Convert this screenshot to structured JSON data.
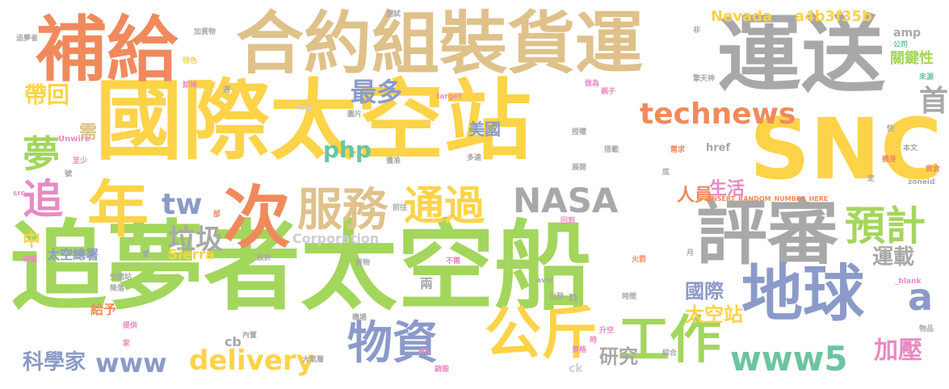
{
  "colors": {
    "yellow": "#fcd349",
    "green": "#a3d65c",
    "tan": "#dfc18a",
    "gray": "#a8a8a8",
    "blue": "#8b9ac9",
    "orange": "#f08a5d",
    "teal": "#6cc4a1",
    "pink": "#e98ac3",
    "lightgray": "#cfcfcf"
  },
  "words": [
    {
      "text": "國際太空站",
      "color": "yellow"
    },
    {
      "text": "追夢者太空船",
      "color": "green"
    },
    {
      "text": "SNC",
      "color": "yellow"
    },
    {
      "text": "合約組裝貨運",
      "color": "tan"
    },
    {
      "text": "運送",
      "color": "gray"
    },
    {
      "text": "補給",
      "color": "orange"
    },
    {
      "text": "評審",
      "color": "gray"
    },
    {
      "text": "地球",
      "color": "blue"
    },
    {
      "text": "次",
      "color": "orange"
    },
    {
      "text": "年",
      "color": "yellow"
    },
    {
      "text": "服務",
      "color": "tan"
    },
    {
      "text": "NASA",
      "color": "gray"
    },
    {
      "text": "公斤",
      "color": "yellow"
    },
    {
      "text": "工作",
      "color": "green"
    },
    {
      "text": "technews",
      "color": "orange"
    },
    {
      "text": "物資",
      "color": "blue"
    },
    {
      "text": "www5",
      "color": "teal"
    },
    {
      "text": "www",
      "color": "blue"
    },
    {
      "text": "delivery",
      "color": "yellow"
    },
    {
      "text": "通過",
      "color": "yellow"
    },
    {
      "text": "預計",
      "color": "green"
    },
    {
      "text": "追",
      "color": "pink"
    },
    {
      "text": "夢",
      "color": "green"
    },
    {
      "text": "首",
      "color": "gray"
    },
    {
      "text": "tw",
      "color": "blue"
    },
    {
      "text": "php",
      "color": "teal"
    },
    {
      "text": "垃圾",
      "color": "gray"
    },
    {
      "text": "最多",
      "color": "blue"
    },
    {
      "text": "帶回",
      "color": "yellow"
    },
    {
      "text": "運載",
      "color": "gray"
    },
    {
      "text": "加壓",
      "color": "pink"
    },
    {
      "text": "a",
      "color": "blue"
    },
    {
      "text": "國際",
      "color": "blue"
    },
    {
      "text": "太空站",
      "color": "yellow"
    },
    {
      "text": "生活",
      "color": "pink"
    },
    {
      "text": "人員",
      "color": "orange"
    },
    {
      "text": "美國",
      "color": "blue"
    },
    {
      "text": "研究",
      "color": "gray"
    },
    {
      "text": "科學家",
      "color": "blue"
    },
    {
      "text": "太空總署",
      "color": "blue"
    },
    {
      "text": "Sierra",
      "color": "yellow"
    },
    {
      "text": "Corporation",
      "color": "lightgray"
    },
    {
      "text": "Nevada",
      "color": "yellow"
    },
    {
      "text": "a4b3f35b",
      "color": "yellow"
    },
    {
      "text": "關鍵性",
      "color": "green"
    },
    {
      "text": "amp",
      "color": "gray"
    },
    {
      "text": "需",
      "color": "tan"
    },
    {
      "text": "中",
      "color": "yellow"
    },
    {
      "text": "給予",
      "color": "orange"
    },
    {
      "text": "兩",
      "color": "gray"
    },
    {
      "text": "href",
      "color": "gray"
    },
    {
      "text": "cb",
      "color": "gray"
    },
    {
      "text": "ck",
      "color": "lightgray"
    },
    {
      "text": "n",
      "color": "gray"
    },
    {
      "text": "INSERT_RANDOM_NUMBER_HERE",
      "color": "orange"
    },
    {
      "text": "Unwire",
      "color": "pink"
    },
    {
      "text": "src",
      "color": "pink"
    },
    {
      "text": "img",
      "color": "lightgray"
    },
    {
      "text": "target",
      "color": "pink"
    },
    {
      "text": "zoneid",
      "color": "gray"
    },
    {
      "text": "_blank",
      "color": "pink"
    },
    {
      "text": "avw",
      "color": "gray"
    },
    {
      "text": "HK",
      "color": "pink"
    },
    {
      "text": "公司",
      "color": "teal"
    },
    {
      "text": "來源",
      "color": "teal"
    },
    {
      "text": "特色",
      "color": "yellow"
    },
    {
      "text": "測試",
      "color": "gray"
    },
    {
      "text": "加貨物",
      "color": "gray"
    },
    {
      "text": "追夢者",
      "color": "gray"
    },
    {
      "text": "卸掉",
      "color": "pink"
    },
    {
      "text": "選",
      "color": "gray"
    },
    {
      "text": "非",
      "color": "gray"
    },
    {
      "text": "擎天神",
      "color": "gray"
    },
    {
      "text": "做為",
      "color": "pink"
    },
    {
      "text": "親子",
      "color": "pink"
    },
    {
      "text": "圖片",
      "color": "gray"
    },
    {
      "text": "授權",
      "color": "gray"
    },
    {
      "text": "快",
      "color": "gray"
    },
    {
      "text": "搭載",
      "color": "gray"
    },
    {
      "text": "需求",
      "color": "orange"
    },
    {
      "text": "本文",
      "color": "gray"
    },
    {
      "text": "機身",
      "color": "orange"
    },
    {
      "text": "貨倉",
      "color": "orange"
    },
    {
      "text": "至少",
      "color": "pink"
    },
    {
      "text": "號",
      "color": "gray"
    },
    {
      "text": "獲准",
      "color": "gray"
    },
    {
      "text": "多達",
      "color": "gray"
    },
    {
      "text": "展開",
      "color": "gray"
    },
    {
      "text": "底",
      "color": "gray"
    },
    {
      "text": "定",
      "color": "gray"
    },
    {
      "text": "部",
      "color": "orange"
    },
    {
      "text": "前往",
      "color": "gray"
    },
    {
      "text": "回到",
      "color": "pink"
    },
    {
      "text": "轉載",
      "color": "pink"
    },
    {
      "text": "蒙",
      "color": "gray"
    },
    {
      "text": "設計",
      "color": "gray"
    },
    {
      "text": "貨物",
      "color": "gray"
    },
    {
      "text": "不需",
      "color": "pink"
    },
    {
      "text": "火箭",
      "color": "orange"
    },
    {
      "text": "月",
      "color": "gray"
    },
    {
      "text": "空間站",
      "color": "gray"
    },
    {
      "text": "降落",
      "color": "gray"
    },
    {
      "text": "出發",
      "color": "gray"
    },
    {
      "text": "時間",
      "color": "gray"
    },
    {
      "text": "機場",
      "color": "gray"
    },
    {
      "text": "提供",
      "color": "pink"
    },
    {
      "text": "家",
      "color": "pink"
    },
    {
      "text": "內置",
      "color": "gray"
    },
    {
      "text": "大氣層",
      "color": "gray"
    },
    {
      "text": "升空",
      "color": "pink"
    },
    {
      "text": "資格",
      "color": "pink"
    },
    {
      "text": "時",
      "color": "pink"
    },
    {
      "text": "銷毀",
      "color": "pink"
    },
    {
      "text": "綜合",
      "color": "gray"
    },
    {
      "text": "物品",
      "color": "gray"
    }
  ]
}
